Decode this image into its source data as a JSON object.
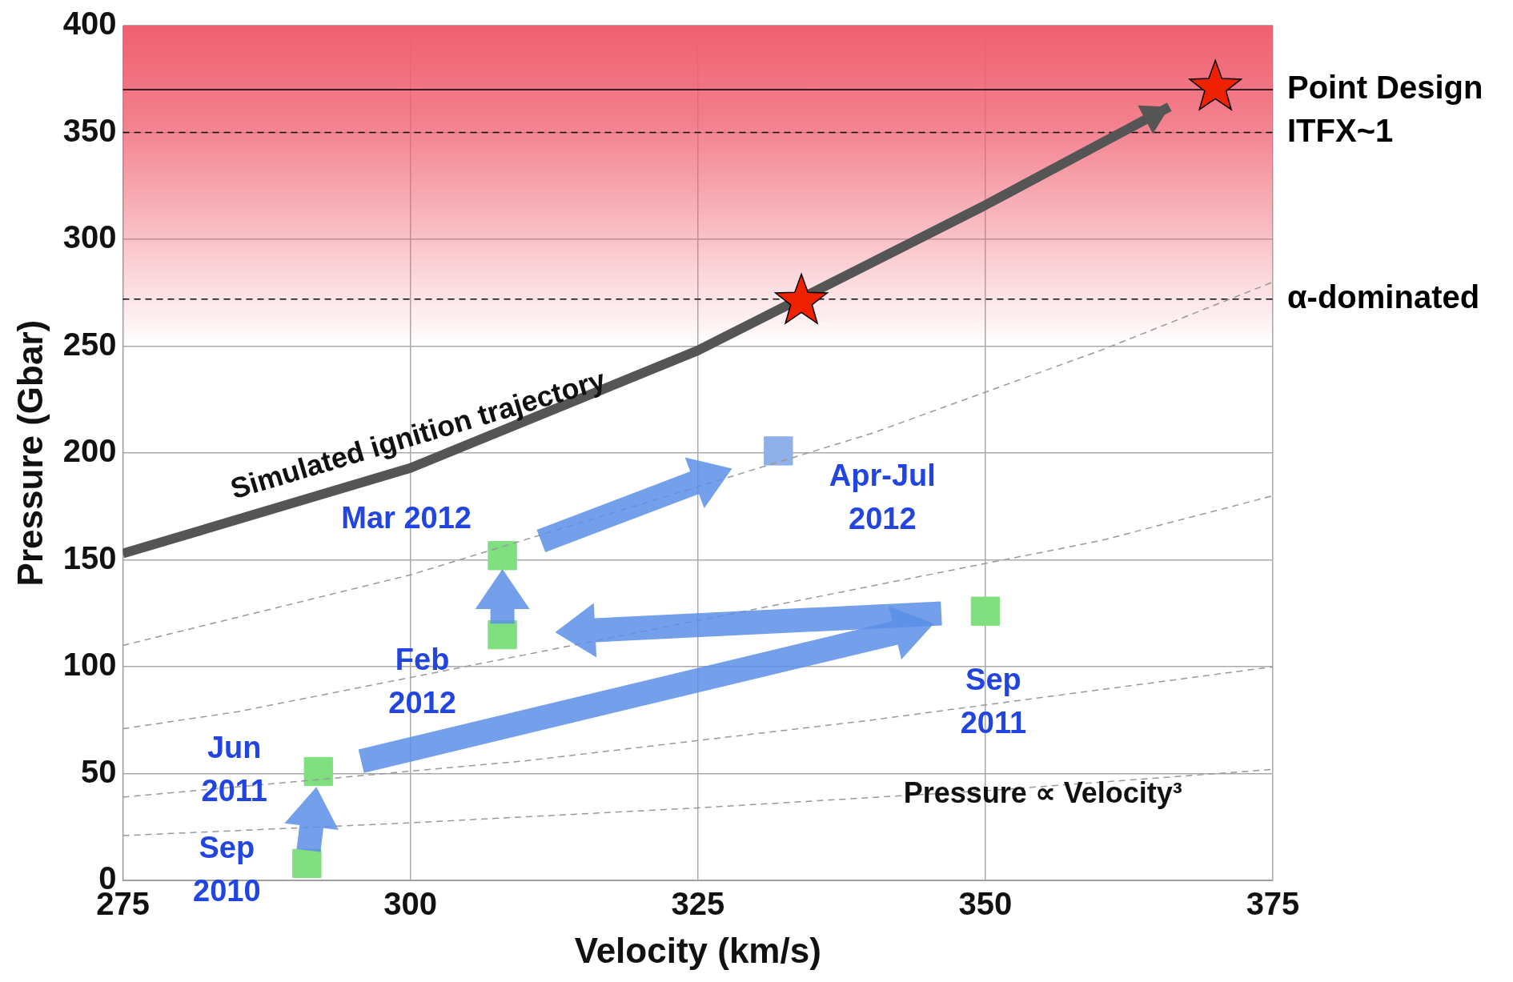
{
  "chart_data": {
    "type": "scatter",
    "xlabel": "Velocity (km/s)",
    "ylabel": "Pressure (Gbar)",
    "xlim": [
      275,
      375
    ],
    "xticks": [
      275,
      300,
      325,
      350,
      375
    ],
    "ylim": [
      0,
      400
    ],
    "yticks": [
      0,
      50,
      100,
      150,
      200,
      250,
      300,
      350,
      400
    ],
    "grid": true,
    "legend": false,
    "bands": [
      {
        "axis": "y",
        "from": 250,
        "to": 400,
        "color": "#f06070"
      }
    ],
    "ref_lines": [
      {
        "axis": "y",
        "value": 370,
        "label": "Point Design",
        "line_style": "solid",
        "color": "#000000"
      },
      {
        "axis": "y",
        "value": 350,
        "label": "ITFX~1",
        "line_style": "dashed",
        "color": "#000000"
      },
      {
        "axis": "y",
        "value": 272,
        "label": "α-dominated",
        "line_style": "dashed",
        "color": "#000000"
      }
    ],
    "series": [
      {
        "type": "line",
        "x": [
          275,
          300,
          340,
          360,
          375
        ],
        "values": [
          110,
          143,
          209,
          248,
          280
        ],
        "color": "#999999",
        "line_style": "dashed",
        "marker": "none"
      },
      {
        "type": "line",
        "x": [
          275,
          285,
          360,
          375
        ],
        "values": [
          71,
          79,
          159,
          180
        ],
        "color": "#999999",
        "line_style": "dashed",
        "marker": "none"
      },
      {
        "type": "line",
        "x": [
          275,
          310,
          340,
          375
        ],
        "values": [
          39,
          56,
          75,
          100
        ],
        "color": "#999999",
        "line_style": "dashed",
        "marker": "none"
      },
      {
        "type": "line",
        "x": [
          275,
          300,
          325,
          350,
          375
        ],
        "values": [
          21,
          27,
          34,
          42,
          52
        ],
        "color": "#999999",
        "line_style": "dashed",
        "marker": "none"
      },
      {
        "type": "line",
        "x": [
          275,
          300,
          325,
          350,
          366
        ],
        "values": [
          153,
          193,
          248,
          316,
          362
        ],
        "color": "#555555",
        "line_style": "solid",
        "marker": "none"
      },
      {
        "type": "scatter",
        "x": [
          291,
          292,
          350,
          308,
          308,
          332
        ],
        "values": [
          8,
          51,
          126,
          115,
          152,
          201
        ],
        "colors": [
          "#80e080",
          "#80e080",
          "#80e080",
          "#80e080",
          "#80e080",
          "#8fb0e8"
        ],
        "marker": "square"
      },
      {
        "type": "scatter",
        "x": [
          334,
          370
        ],
        "values": [
          271,
          371
        ],
        "color": "#ee2200",
        "marker": "star"
      }
    ],
    "annotations": [
      {
        "text": "Simulated ignition trajectory",
        "x": 300,
        "y": 193
      },
      {
        "text": "Sep\n2010",
        "x": 291,
        "y": 8
      },
      {
        "text": "Jun\n2011",
        "x": 292,
        "y": 51
      },
      {
        "text": "Feb\n2012",
        "x": 308,
        "y": 115
      },
      {
        "text": "Mar 2012",
        "x": 308,
        "y": 152
      },
      {
        "text": "Apr-Jul\n2012",
        "x": 332,
        "y": 201
      },
      {
        "text": "Sep\n2011",
        "x": 350,
        "y": 126
      },
      "Pressure ∝ Velocity³"
    ]
  }
}
